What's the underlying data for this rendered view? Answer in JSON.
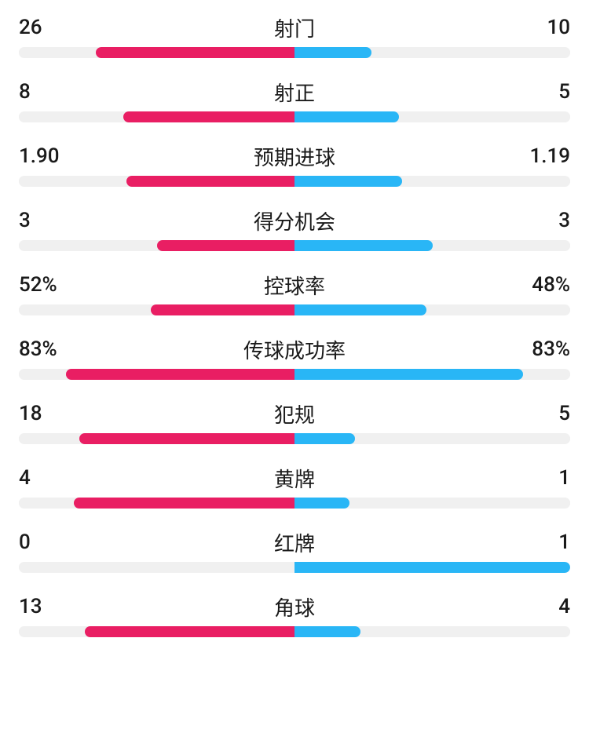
{
  "colors": {
    "left": "#e91e63",
    "right": "#29b6f6",
    "track": "#f0f0f0",
    "text": "#1a1a1a"
  },
  "stats": [
    {
      "label": "射门",
      "left_value": "26",
      "right_value": "10",
      "left_pct": 72,
      "right_pct": 28
    },
    {
      "label": "射正",
      "left_value": "8",
      "right_value": "5",
      "left_pct": 62,
      "right_pct": 38
    },
    {
      "label": "预期进球",
      "left_value": "1.90",
      "right_value": "1.19",
      "left_pct": 61,
      "right_pct": 39
    },
    {
      "label": "得分机会",
      "left_value": "3",
      "right_value": "3",
      "left_pct": 50,
      "right_pct": 50
    },
    {
      "label": "控球率",
      "left_value": "52%",
      "right_value": "48%",
      "left_pct": 52,
      "right_pct": 48
    },
    {
      "label": "传球成功率",
      "left_value": "83%",
      "right_value": "83%",
      "left_pct": 83,
      "right_pct": 83
    },
    {
      "label": "犯规",
      "left_value": "18",
      "right_value": "5",
      "left_pct": 78,
      "right_pct": 22
    },
    {
      "label": "黄牌",
      "left_value": "4",
      "right_value": "1",
      "left_pct": 80,
      "right_pct": 20
    },
    {
      "label": "红牌",
      "left_value": "0",
      "right_value": "1",
      "left_pct": 0,
      "right_pct": 100
    },
    {
      "label": "角球",
      "left_value": "13",
      "right_value": "4",
      "left_pct": 76,
      "right_pct": 24
    }
  ]
}
